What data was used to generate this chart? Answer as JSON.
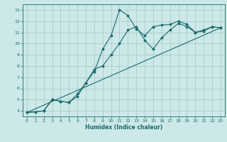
{
  "xlabel": "Humidex (Indice chaleur)",
  "xlim": [
    -0.5,
    23.5
  ],
  "ylim": [
    3.5,
    13.5
  ],
  "xticks": [
    0,
    1,
    2,
    3,
    4,
    5,
    6,
    7,
    8,
    9,
    10,
    11,
    12,
    13,
    14,
    15,
    16,
    17,
    18,
    19,
    20,
    21,
    22,
    23
  ],
  "yticks": [
    4,
    5,
    6,
    7,
    8,
    9,
    10,
    11,
    12,
    13
  ],
  "bg_color": "#cce8e8",
  "grid_color": "#aacccc",
  "line_color": "#1a6b6b",
  "line1_x": [
    0,
    1,
    2,
    3,
    4,
    5,
    6,
    7,
    8,
    9,
    10,
    11,
    12,
    13,
    14,
    15,
    16,
    17,
    18,
    19,
    20,
    21,
    22,
    23
  ],
  "line1_y": [
    3.85,
    3.9,
    4.0,
    5.0,
    4.85,
    4.75,
    5.5,
    6.5,
    7.5,
    9.5,
    10.7,
    13.0,
    12.5,
    11.3,
    10.7,
    11.5,
    11.65,
    11.7,
    12.0,
    11.7,
    11.0,
    11.1,
    11.5,
    11.4
  ],
  "line2_x": [
    0,
    2,
    3,
    4,
    5,
    6,
    7,
    8,
    9,
    10,
    11,
    12,
    13,
    14,
    15,
    16,
    17,
    18,
    19,
    20,
    21,
    22,
    23
  ],
  "line2_y": [
    3.85,
    4.0,
    5.0,
    4.85,
    4.75,
    5.3,
    6.5,
    7.7,
    8.0,
    9.0,
    10.0,
    11.2,
    11.5,
    10.3,
    9.5,
    10.5,
    11.2,
    11.8,
    11.5,
    11.0,
    11.2,
    11.5,
    11.4
  ],
  "line3_x": [
    0,
    23
  ],
  "line3_y": [
    3.85,
    11.4
  ]
}
